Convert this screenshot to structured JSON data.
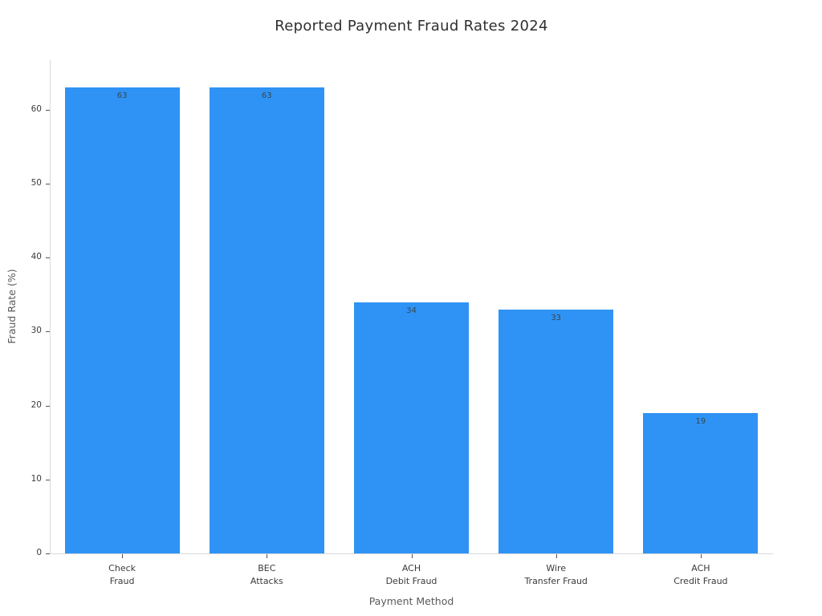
{
  "chart_data": {
    "type": "bar",
    "title": "Reported Payment Fraud Rates 2024",
    "xlabel": "Payment Method",
    "ylabel": "Fraud Rate (%)",
    "categories": [
      [
        "Check",
        "Fraud"
      ],
      [
        "BEC",
        "Attacks"
      ],
      [
        "ACH",
        "Debit Fraud"
      ],
      [
        "Wire",
        "Transfer Fraud"
      ],
      [
        "ACH",
        "Credit Fraud"
      ]
    ],
    "values": [
      63,
      63,
      34,
      33,
      19
    ],
    "bar_labels": [
      "63",
      "63",
      "34",
      "33",
      "19"
    ],
    "yticks": [
      0,
      10,
      20,
      30,
      40,
      50,
      60
    ],
    "ylim": [
      0,
      66.7
    ],
    "grid": false,
    "legend": null,
    "colors": {
      "bar": "#2F93F5",
      "title": "#2f2f2f",
      "tick_label": "#3b3b3b",
      "axis_title": "#5a5a5a",
      "spine": "#d9d9d9",
      "value_label": "#374650"
    }
  }
}
